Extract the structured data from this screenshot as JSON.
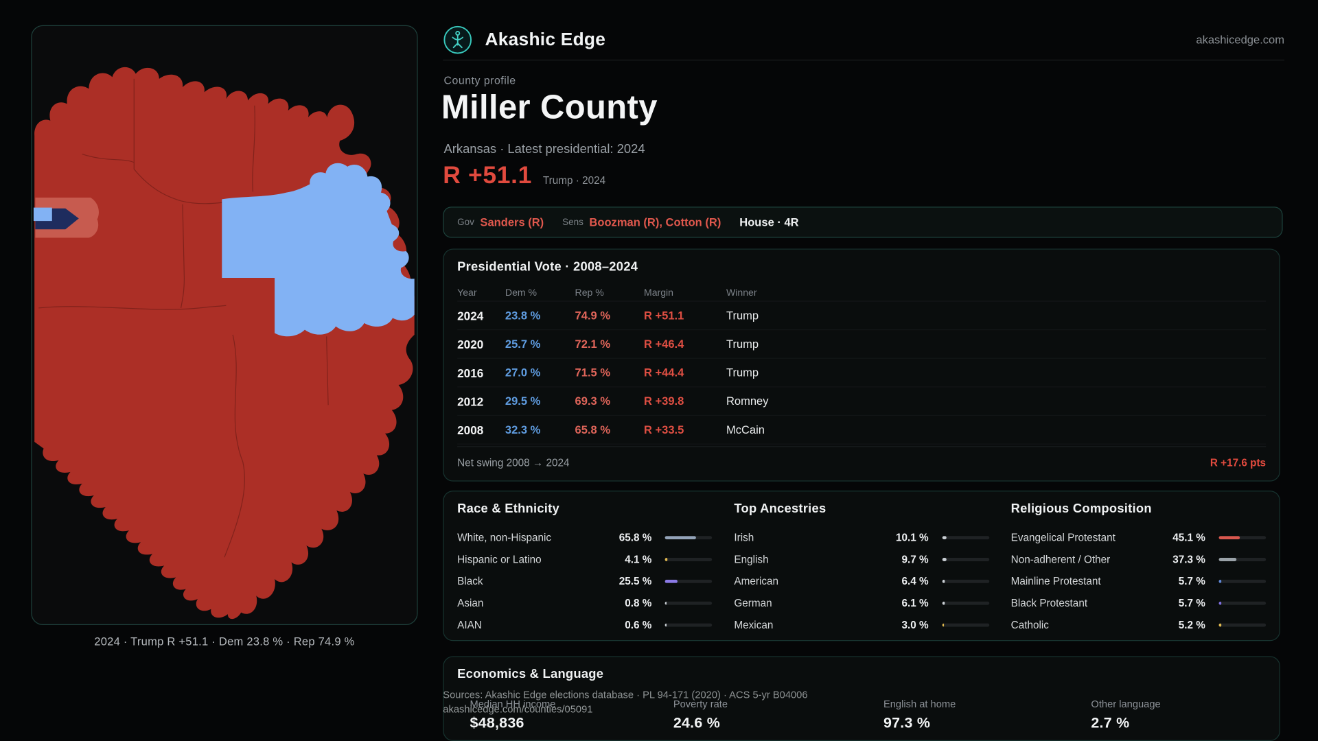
{
  "header": {
    "brand": "Akashic Edge",
    "domain": "akashicedge.com"
  },
  "profile": {
    "kicker": "County profile",
    "title": "Miller County",
    "subtitle": "Arkansas · Latest presidential: 2024",
    "margin": "R +51.1",
    "margin_note": "Trump · 2024"
  },
  "officials": {
    "gov_label": "Gov",
    "gov_value": "Sanders (R)",
    "sens_label": "Sens",
    "sens_value": "Boozman (R), Cotton (R)",
    "house_value": "House · 4R"
  },
  "presidential": {
    "title": "Presidential Vote · 2008–2024",
    "columns": {
      "year": "Year",
      "dem": "Dem %",
      "rep": "Rep %",
      "margin": "Margin",
      "winner": "Winner"
    },
    "rows": [
      {
        "year": "2024",
        "dem": "23.8 %",
        "rep": "74.9 %",
        "margin": "R +51.1",
        "winner": "Trump"
      },
      {
        "year": "2020",
        "dem": "25.7 %",
        "rep": "72.1 %",
        "margin": "R +46.4",
        "winner": "Trump"
      },
      {
        "year": "2016",
        "dem": "27.0 %",
        "rep": "71.5 %",
        "margin": "R +44.4",
        "winner": "Trump"
      },
      {
        "year": "2012",
        "dem": "29.5 %",
        "rep": "69.3 %",
        "margin": "R +39.8",
        "winner": "Romney"
      },
      {
        "year": "2008",
        "dem": "32.3 %",
        "rep": "65.8 %",
        "margin": "R +33.5",
        "winner": "McCain"
      }
    ],
    "net_swing_label": "Net swing 2008 → 2024",
    "net_swing_value": "R +17.6 pts"
  },
  "demographics": {
    "race": {
      "title": "Race & Ethnicity",
      "rows": [
        {
          "label": "White, non-Hispanic",
          "value": "65.8 %",
          "pct": 65.8,
          "color": "#93a3b8"
        },
        {
          "label": "Hispanic or Latino",
          "value": "4.1 %",
          "pct": 4.1,
          "color": "#e0b84f"
        },
        {
          "label": "Black",
          "value": "25.5 %",
          "pct": 25.5,
          "color": "#8b7ae6"
        },
        {
          "label": "Asian",
          "value": "0.8 %",
          "pct": 0.8,
          "color": "#c9ced3"
        },
        {
          "label": "AIAN",
          "value": "0.6 %",
          "pct": 0.6,
          "color": "#c9ced3"
        }
      ]
    },
    "ancestries": {
      "title": "Top Ancestries",
      "rows": [
        {
          "label": "Irish",
          "value": "10.1 %",
          "pct": 10.1,
          "color": "#c9ced3"
        },
        {
          "label": "English",
          "value": "9.7 %",
          "pct": 9.7,
          "color": "#c9ced3"
        },
        {
          "label": "American",
          "value": "6.4 %",
          "pct": 6.4,
          "color": "#c9ced3"
        },
        {
          "label": "German",
          "value": "6.1 %",
          "pct": 6.1,
          "color": "#c9ced3"
        },
        {
          "label": "Mexican",
          "value": "3.0 %",
          "pct": 3.0,
          "color": "#e0b84f"
        }
      ]
    },
    "religion": {
      "title": "Religious Composition",
      "rows": [
        {
          "label": "Evangelical Protestant",
          "value": "45.1 %",
          "pct": 45.1,
          "color": "#d9574e"
        },
        {
          "label": "Non-adherent / Other",
          "value": "37.3 %",
          "pct": 37.3,
          "color": "#9aa2a8"
        },
        {
          "label": "Mainline Protestant",
          "value": "5.7 %",
          "pct": 5.7,
          "color": "#5f87d6"
        },
        {
          "label": "Black Protestant",
          "value": "5.7 %",
          "pct": 5.7,
          "color": "#7f6fe0"
        },
        {
          "label": "Catholic",
          "value": "5.2 %",
          "pct": 5.2,
          "color": "#e0b84f"
        }
      ]
    }
  },
  "economics": {
    "title": "Economics & Language",
    "stats": [
      {
        "label": "Median HH income",
        "value": "$48,836"
      },
      {
        "label": "Poverty rate",
        "value": "24.6 %"
      },
      {
        "label": "English at home",
        "value": "97.3 %"
      },
      {
        "label": "Other language",
        "value": "2.7 %"
      }
    ]
  },
  "map": {
    "caption": "2024 · Trump R +51.1 · Dem 23.8 % · Rep 74.9 %"
  },
  "footer": {
    "sources": "Sources: Akashic Edge elections database · PL 94-171 (2020) · ACS 5-yr B04006",
    "permalink": "akashicedge.com/counties/05091"
  },
  "colors": {
    "rep": "#e14a3e",
    "dem": "#5f9ce0",
    "accent_teal": "#38c7bb",
    "map_red": "#ac2f26",
    "map_blue": "#82b2f4",
    "map_navy": "#1e2c5e",
    "map_salmon": "#c75b4f"
  }
}
